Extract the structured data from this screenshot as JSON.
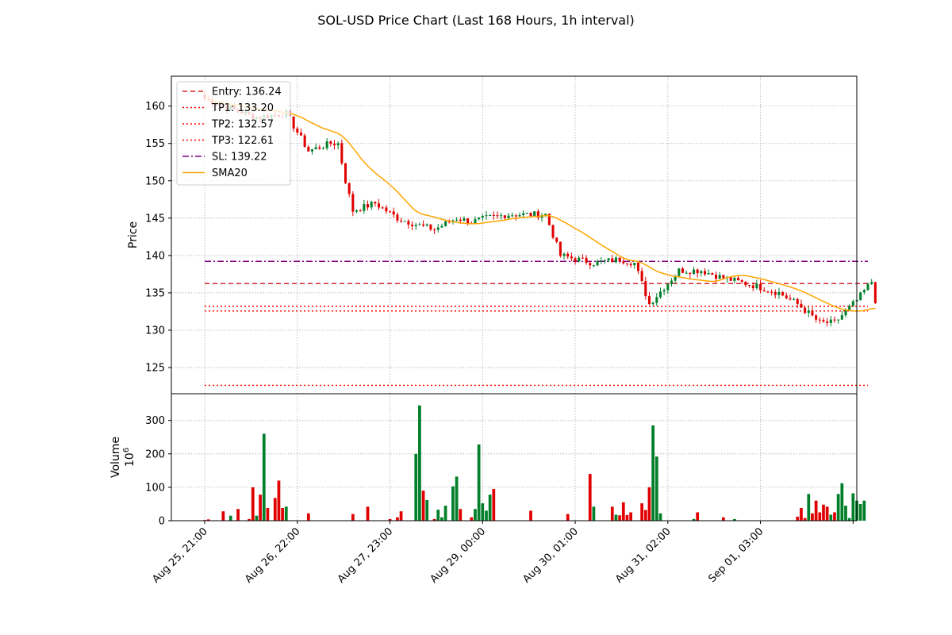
{
  "chart_data": {
    "type": "candlestick",
    "title": "SOL-USD Price Chart (Last 168 Hours, 1h interval)",
    "price_panel": {
      "ylabel": "Price",
      "ylim": [
        121.5,
        164
      ],
      "yticks": [
        125,
        130,
        135,
        140,
        145,
        150,
        155,
        160
      ],
      "grid": true
    },
    "volume_panel": {
      "ylabel": "Volume",
      "ylabel_exponent": "10^6",
      "ylim": [
        0,
        380
      ],
      "yticks": [
        0,
        100,
        200,
        300
      ],
      "grid": true
    },
    "x_axis": {
      "tick_labels": [
        "Aug 25, 21:00",
        "Aug 26, 22:00",
        "Aug 27, 23:00",
        "Aug 29, 00:00",
        "Aug 30, 01:00",
        "Aug 31, 02:00",
        "Sep 01, 03:00"
      ],
      "tick_hours": [
        0,
        25,
        50,
        75,
        100,
        125,
        150
      ],
      "xlim_hours": [
        -9,
        176
      ]
    },
    "levels": [
      {
        "name": "Entry: 136.24",
        "value": 136.24,
        "color": "#d62728",
        "style": "dashed"
      },
      {
        "name": "TP1: 133.20",
        "value": 133.2,
        "color": "#ff0000",
        "style": "dotted"
      },
      {
        "name": "TP2: 132.57",
        "value": 132.57,
        "color": "#ff0000",
        "style": "dotted"
      },
      {
        "name": "TP3: 122.61",
        "value": 122.61,
        "color": "#ff0000",
        "style": "dotted"
      },
      {
        "name": "SL: 139.22",
        "value": 139.22,
        "color": "#800080",
        "style": "dashdot"
      }
    ],
    "sma_series_name": "SMA20",
    "sma_color": "#ffa500",
    "up_color": "#007f2a",
    "down_color": "#e00000",
    "legend_position": "upper-left",
    "anchors_close": [
      [
        0,
        161
      ],
      [
        8,
        159.5
      ],
      [
        14,
        158.5
      ],
      [
        22,
        159
      ],
      [
        28,
        154
      ],
      [
        34,
        155
      ],
      [
        36,
        155
      ],
      [
        38,
        150
      ],
      [
        40,
        146
      ],
      [
        46,
        147
      ],
      [
        52,
        145
      ],
      [
        58,
        144
      ],
      [
        62,
        143.5
      ],
      [
        68,
        145
      ],
      [
        72,
        144.5
      ],
      [
        76,
        145
      ],
      [
        82,
        145.5
      ],
      [
        92,
        145.5
      ],
      [
        96,
        140
      ],
      [
        105,
        139
      ],
      [
        112,
        139.5
      ],
      [
        116,
        139
      ],
      [
        120,
        133.5
      ],
      [
        128,
        138
      ],
      [
        134,
        138
      ],
      [
        140,
        137
      ],
      [
        148,
        136
      ],
      [
        155,
        135
      ],
      [
        160,
        133.5
      ],
      [
        166,
        131
      ],
      [
        170,
        131
      ],
      [
        176,
        134
      ],
      [
        180,
        136.5
      ],
      [
        181,
        134
      ]
    ],
    "volume_spikes": [
      [
        0,
        2
      ],
      [
        1,
        4
      ],
      [
        5,
        28
      ],
      [
        7,
        15
      ],
      [
        9,
        35
      ],
      [
        12,
        5
      ],
      [
        13,
        100
      ],
      [
        14,
        15
      ],
      [
        15,
        78
      ],
      [
        16,
        260
      ],
      [
        17,
        38
      ],
      [
        19,
        68
      ],
      [
        20,
        120
      ],
      [
        21,
        38
      ],
      [
        22,
        42
      ],
      [
        28,
        22
      ],
      [
        40,
        20
      ],
      [
        44,
        42
      ],
      [
        50,
        5
      ],
      [
        52,
        10
      ],
      [
        53,
        28
      ],
      [
        57,
        200
      ],
      [
        58,
        345
      ],
      [
        59,
        90
      ],
      [
        60,
        62
      ],
      [
        62,
        5
      ],
      [
        63,
        33
      ],
      [
        64,
        10
      ],
      [
        65,
        45
      ],
      [
        67,
        103
      ],
      [
        68,
        132
      ],
      [
        69,
        35
      ],
      [
        72,
        10
      ],
      [
        73,
        35
      ],
      [
        74,
        228
      ],
      [
        75,
        52
      ],
      [
        76,
        30
      ],
      [
        77,
        78
      ],
      [
        78,
        95
      ],
      [
        88,
        30
      ],
      [
        98,
        20
      ],
      [
        104,
        140
      ],
      [
        105,
        42
      ],
      [
        110,
        42
      ],
      [
        111,
        18
      ],
      [
        112,
        16
      ],
      [
        113,
        55
      ],
      [
        114,
        17
      ],
      [
        115,
        25
      ],
      [
        118,
        52
      ],
      [
        119,
        32
      ],
      [
        120,
        100
      ],
      [
        121,
        285
      ],
      [
        122,
        192
      ],
      [
        123,
        22
      ],
      [
        132,
        5
      ],
      [
        133,
        25
      ],
      [
        140,
        10
      ],
      [
        143,
        5
      ],
      [
        160,
        12
      ],
      [
        161,
        38
      ],
      [
        162,
        8
      ],
      [
        163,
        80
      ],
      [
        164,
        22
      ],
      [
        165,
        60
      ],
      [
        166,
        25
      ],
      [
        167,
        48
      ],
      [
        168,
        42
      ],
      [
        169,
        18
      ],
      [
        170,
        25
      ],
      [
        171,
        80
      ],
      [
        172,
        112
      ],
      [
        173,
        45
      ],
      [
        174,
        8
      ],
      [
        175,
        82
      ],
      [
        176,
        60
      ],
      [
        177,
        50
      ],
      [
        178,
        60
      ]
    ]
  }
}
